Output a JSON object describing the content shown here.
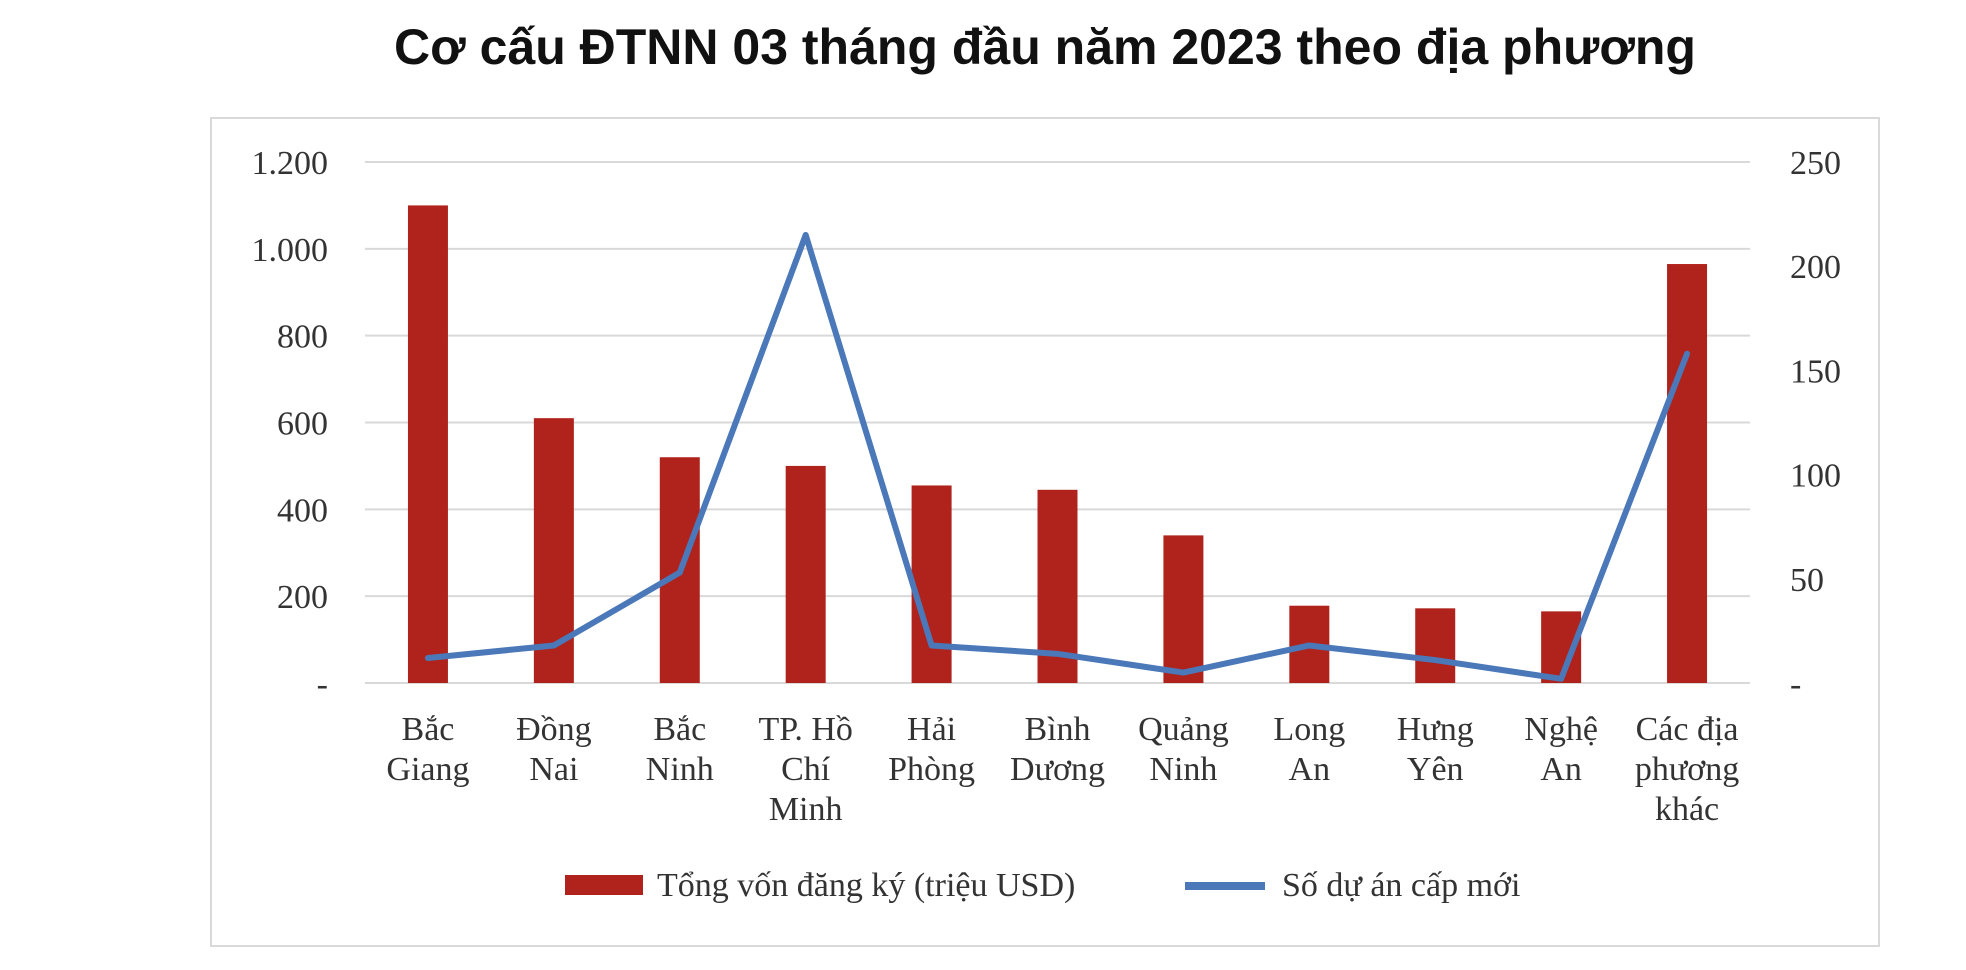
{
  "chart_data": {
    "type": "bar+line",
    "title": "Cơ cấu ĐTNN 03 tháng đầu năm 2023 theo địa phương",
    "categories": [
      [
        "Bắc",
        "Giang"
      ],
      [
        "Đồng",
        "Nai"
      ],
      [
        "Bắc",
        "Ninh"
      ],
      [
        "TP. Hồ",
        "Chí",
        "Minh"
      ],
      [
        "Hải",
        "Phòng"
      ],
      [
        "Bình",
        "Dương"
      ],
      [
        "Quảng",
        "Ninh"
      ],
      [
        "Long",
        "An"
      ],
      [
        "Hưng",
        "Yên"
      ],
      [
        "Nghệ",
        "An"
      ],
      [
        "Các địa",
        "phương",
        "khác"
      ]
    ],
    "series": [
      {
        "name": "Tổng vốn đăng ký (triệu USD)",
        "type": "bar",
        "axis": "left",
        "color": "#b0231c",
        "values": [
          1100,
          610,
          520,
          500,
          455,
          445,
          340,
          178,
          172,
          165,
          965
        ]
      },
      {
        "name": "Số dự án cấp mới",
        "type": "line",
        "axis": "right",
        "color": "#4a78b8",
        "values": [
          12,
          18,
          53,
          215,
          18,
          14,
          5,
          18,
          11,
          2,
          158
        ]
      }
    ],
    "y_left": {
      "min": 0,
      "max": 1200,
      "ticks": [
        "-",
        "200",
        "400",
        "600",
        "800",
        "1.000",
        "1.200"
      ],
      "tick_values": [
        0,
        200,
        400,
        600,
        800,
        1000,
        1200
      ]
    },
    "y_right": {
      "min": 0,
      "max": 250,
      "ticks": [
        "-",
        "50",
        "100",
        "150",
        "200",
        "250"
      ],
      "tick_values": [
        0,
        50,
        100,
        150,
        200,
        250
      ]
    },
    "grid": true,
    "legend_position": "bottom"
  }
}
